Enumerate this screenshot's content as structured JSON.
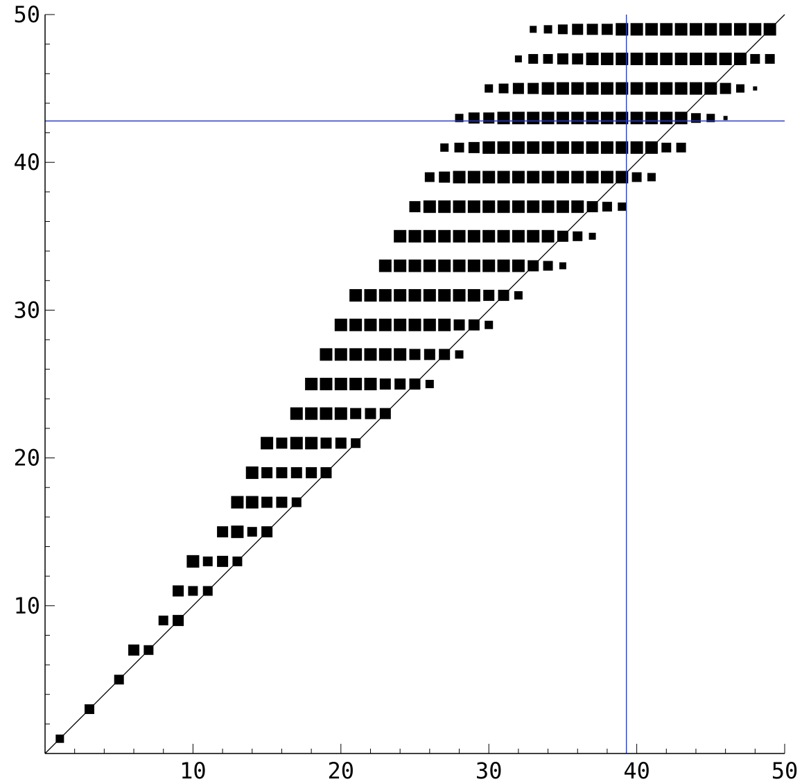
{
  "chart_data": {
    "type": "scatter",
    "title": "",
    "xlabel": "",
    "ylabel": "",
    "xlim": [
      0,
      50
    ],
    "ylim": [
      0,
      50
    ],
    "x_ticks": [
      "10",
      "20",
      "30",
      "40",
      "50"
    ],
    "y_ticks": [
      "10",
      "20",
      "30",
      "40",
      "50"
    ],
    "grid": false,
    "reference_line": {
      "from": [
        0,
        0
      ],
      "to": [
        50,
        50
      ],
      "color": "#000000"
    },
    "crosshair": {
      "x": 39.3,
      "y": 42.8,
      "color": "#2a3fbf"
    },
    "marker": {
      "shape": "square",
      "color": "#000000"
    },
    "rows": [
      {
        "y": 1,
        "points": [
          [
            1,
            0.6
          ]
        ]
      },
      {
        "y": 3,
        "points": [
          [
            3,
            0.7
          ]
        ]
      },
      {
        "y": 5,
        "points": [
          [
            5,
            0.7
          ]
        ]
      },
      {
        "y": 7,
        "points": [
          [
            6,
            0.8
          ],
          [
            7,
            0.7
          ]
        ]
      },
      {
        "y": 9,
        "points": [
          [
            8,
            0.7
          ],
          [
            9,
            0.8
          ]
        ]
      },
      {
        "y": 11,
        "points": [
          [
            9,
            0.8
          ],
          [
            10,
            0.7
          ],
          [
            11,
            0.7
          ]
        ]
      },
      {
        "y": 13,
        "points": [
          [
            10,
            0.9
          ],
          [
            11,
            0.7
          ],
          [
            12,
            0.8
          ],
          [
            13,
            0.7
          ]
        ]
      },
      {
        "y": 15,
        "points": [
          [
            12,
            0.8
          ],
          [
            13,
            0.9
          ],
          [
            14,
            0.7
          ],
          [
            15,
            0.8
          ]
        ]
      },
      {
        "y": 17,
        "points": [
          [
            13,
            0.9
          ],
          [
            14,
            0.9
          ],
          [
            15,
            0.8
          ],
          [
            16,
            0.8
          ],
          [
            17,
            0.7
          ]
        ]
      },
      {
        "y": 19,
        "points": [
          [
            14,
            0.9
          ],
          [
            15,
            0.8
          ],
          [
            16,
            0.8
          ],
          [
            17,
            0.8
          ],
          [
            18,
            0.8
          ],
          [
            19,
            0.8
          ]
        ]
      },
      {
        "y": 21,
        "points": [
          [
            15,
            0.9
          ],
          [
            16,
            0.8
          ],
          [
            17,
            0.9
          ],
          [
            18,
            0.9
          ],
          [
            19,
            0.8
          ],
          [
            20,
            0.8
          ],
          [
            21,
            0.7
          ]
        ]
      },
      {
        "y": 23,
        "points": [
          [
            17,
            0.9
          ],
          [
            18,
            0.9
          ],
          [
            19,
            0.9
          ],
          [
            20,
            0.9
          ],
          [
            21,
            0.8
          ],
          [
            22,
            0.8
          ],
          [
            23,
            0.8
          ]
        ]
      },
      {
        "y": 25,
        "points": [
          [
            18,
            0.9
          ],
          [
            19,
            0.9
          ],
          [
            20,
            0.9
          ],
          [
            21,
            0.9
          ],
          [
            22,
            0.9
          ],
          [
            23,
            0.8
          ],
          [
            24,
            0.8
          ],
          [
            25,
            0.8
          ],
          [
            26,
            0.6
          ]
        ]
      },
      {
        "y": 27,
        "points": [
          [
            19,
            0.9
          ],
          [
            20,
            0.9
          ],
          [
            21,
            0.9
          ],
          [
            22,
            0.9
          ],
          [
            23,
            0.9
          ],
          [
            24,
            0.9
          ],
          [
            25,
            0.8
          ],
          [
            26,
            0.8
          ],
          [
            27,
            0.8
          ],
          [
            28,
            0.6
          ]
        ]
      },
      {
        "y": 29,
        "points": [
          [
            20,
            0.9
          ],
          [
            21,
            0.9
          ],
          [
            22,
            0.9
          ],
          [
            23,
            0.9
          ],
          [
            24,
            0.9
          ],
          [
            25,
            0.9
          ],
          [
            26,
            0.9
          ],
          [
            27,
            0.9
          ],
          [
            28,
            0.8
          ],
          [
            29,
            0.8
          ],
          [
            30,
            0.6
          ]
        ]
      },
      {
        "y": 31,
        "points": [
          [
            21,
            0.9
          ],
          [
            22,
            0.9
          ],
          [
            23,
            0.9
          ],
          [
            24,
            0.9
          ],
          [
            25,
            0.9
          ],
          [
            26,
            0.9
          ],
          [
            27,
            0.9
          ],
          [
            28,
            0.9
          ],
          [
            29,
            0.9
          ],
          [
            30,
            0.8
          ],
          [
            31,
            0.8
          ],
          [
            32,
            0.6
          ]
        ]
      },
      {
        "y": 33,
        "points": [
          [
            23,
            0.9
          ],
          [
            24,
            0.9
          ],
          [
            25,
            0.9
          ],
          [
            26,
            0.9
          ],
          [
            27,
            0.9
          ],
          [
            28,
            0.9
          ],
          [
            29,
            0.9
          ],
          [
            30,
            0.9
          ],
          [
            31,
            0.9
          ],
          [
            32,
            0.9
          ],
          [
            33,
            0.8
          ],
          [
            34,
            0.7
          ],
          [
            35,
            0.5
          ]
        ]
      },
      {
        "y": 35,
        "points": [
          [
            24,
            0.9
          ],
          [
            25,
            0.9
          ],
          [
            26,
            0.9
          ],
          [
            27,
            0.9
          ],
          [
            28,
            0.9
          ],
          [
            29,
            0.9
          ],
          [
            30,
            0.9
          ],
          [
            31,
            0.9
          ],
          [
            32,
            0.9
          ],
          [
            33,
            0.9
          ],
          [
            34,
            0.9
          ],
          [
            35,
            0.8
          ],
          [
            36,
            0.7
          ],
          [
            37,
            0.5
          ]
        ]
      },
      {
        "y": 37,
        "points": [
          [
            25,
            0.8
          ],
          [
            26,
            0.9
          ],
          [
            27,
            0.9
          ],
          [
            28,
            0.9
          ],
          [
            29,
            0.9
          ],
          [
            30,
            0.9
          ],
          [
            31,
            0.9
          ],
          [
            32,
            0.9
          ],
          [
            33,
            0.9
          ],
          [
            34,
            0.9
          ],
          [
            35,
            0.9
          ],
          [
            36,
            0.9
          ],
          [
            37,
            0.8
          ],
          [
            38,
            0.7
          ],
          [
            39,
            0.6
          ]
        ]
      },
      {
        "y": 39,
        "points": [
          [
            26,
            0.7
          ],
          [
            27,
            0.8
          ],
          [
            28,
            0.9
          ],
          [
            29,
            0.9
          ],
          [
            30,
            0.9
          ],
          [
            31,
            0.9
          ],
          [
            32,
            0.9
          ],
          [
            33,
            0.9
          ],
          [
            34,
            0.9
          ],
          [
            35,
            0.9
          ],
          [
            36,
            0.9
          ],
          [
            37,
            0.9
          ],
          [
            38,
            0.9
          ],
          [
            39,
            0.9
          ],
          [
            40,
            0.7
          ],
          [
            41,
            0.6
          ]
        ]
      },
      {
        "y": 41,
        "points": [
          [
            27,
            0.6
          ],
          [
            28,
            0.7
          ],
          [
            29,
            0.8
          ],
          [
            30,
            0.9
          ],
          [
            31,
            0.9
          ],
          [
            32,
            0.9
          ],
          [
            33,
            0.9
          ],
          [
            34,
            0.9
          ],
          [
            35,
            0.9
          ],
          [
            36,
            0.9
          ],
          [
            37,
            0.9
          ],
          [
            38,
            0.9
          ],
          [
            39,
            0.9
          ],
          [
            40,
            0.9
          ],
          [
            41,
            0.9
          ],
          [
            42,
            0.7
          ],
          [
            43,
            0.7
          ]
        ]
      },
      {
        "y": 43,
        "points": [
          [
            28,
            0.6
          ],
          [
            29,
            0.8
          ],
          [
            30,
            0.8
          ],
          [
            31,
            0.9
          ],
          [
            32,
            0.9
          ],
          [
            33,
            0.9
          ],
          [
            34,
            0.9
          ],
          [
            35,
            0.9
          ],
          [
            36,
            0.9
          ],
          [
            37,
            0.9
          ],
          [
            38,
            0.9
          ],
          [
            39,
            0.9
          ],
          [
            40,
            0.9
          ],
          [
            41,
            0.9
          ],
          [
            42,
            0.9
          ],
          [
            43,
            0.9
          ],
          [
            44,
            0.7
          ],
          [
            45,
            0.6
          ],
          [
            46,
            0.3
          ]
        ]
      },
      {
        "y": 45,
        "points": [
          [
            30,
            0.6
          ],
          [
            31,
            0.7
          ],
          [
            32,
            0.8
          ],
          [
            33,
            0.8
          ],
          [
            34,
            0.9
          ],
          [
            35,
            0.9
          ],
          [
            36,
            0.9
          ],
          [
            37,
            0.9
          ],
          [
            38,
            0.9
          ],
          [
            39,
            0.9
          ],
          [
            40,
            0.9
          ],
          [
            41,
            0.9
          ],
          [
            42,
            0.9
          ],
          [
            43,
            0.9
          ],
          [
            44,
            0.9
          ],
          [
            45,
            0.9
          ],
          [
            46,
            0.8
          ],
          [
            47,
            0.6
          ],
          [
            48,
            0.3
          ]
        ]
      },
      {
        "y": 47,
        "points": [
          [
            32,
            0.5
          ],
          [
            33,
            0.7
          ],
          [
            34,
            0.7
          ],
          [
            35,
            0.8
          ],
          [
            36,
            0.8
          ],
          [
            37,
            0.9
          ],
          [
            38,
            0.9
          ],
          [
            39,
            0.9
          ],
          [
            40,
            0.9
          ],
          [
            41,
            0.9
          ],
          [
            42,
            0.9
          ],
          [
            43,
            0.9
          ],
          [
            44,
            0.9
          ],
          [
            45,
            0.9
          ],
          [
            46,
            0.9
          ],
          [
            47,
            0.9
          ],
          [
            48,
            0.7
          ],
          [
            49,
            0.7
          ]
        ]
      },
      {
        "y": 49,
        "points": [
          [
            33,
            0.5
          ],
          [
            34,
            0.6
          ],
          [
            35,
            0.7
          ],
          [
            36,
            0.8
          ],
          [
            37,
            0.8
          ],
          [
            38,
            0.8
          ],
          [
            39,
            0.9
          ],
          [
            40,
            0.9
          ],
          [
            41,
            0.9
          ],
          [
            42,
            0.9
          ],
          [
            43,
            0.9
          ],
          [
            44,
            0.9
          ],
          [
            45,
            0.9
          ],
          [
            46,
            0.9
          ],
          [
            47,
            0.9
          ],
          [
            48,
            0.9
          ],
          [
            49,
            0.9
          ]
        ]
      }
    ]
  }
}
